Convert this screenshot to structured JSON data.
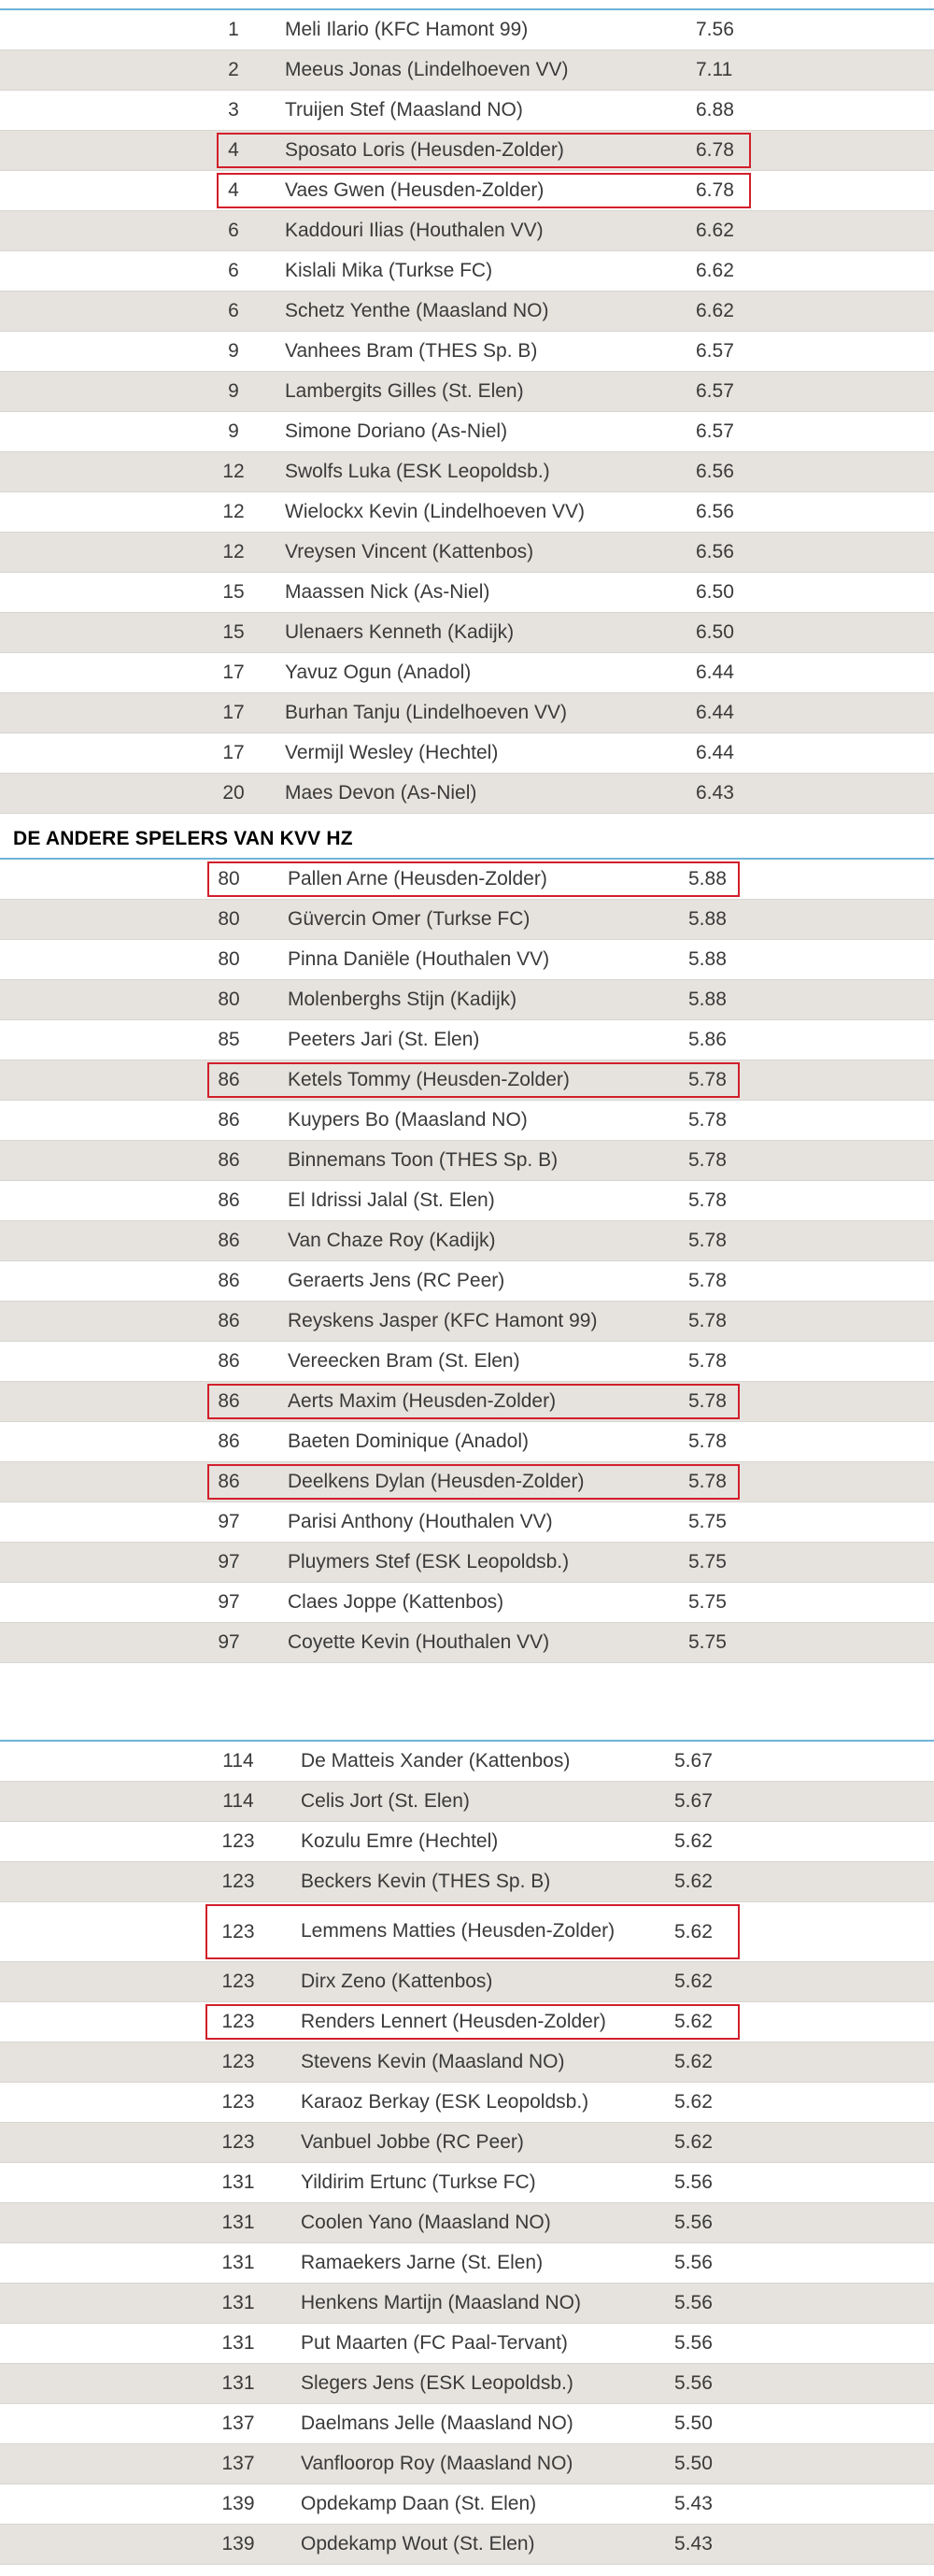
{
  "section_title": "DE  ANDERE SPELERS VAN KVV HZ",
  "block1": [
    {
      "rank": "1",
      "name": "Meli Ilario (KFC Hamont 99)",
      "score": "7.56",
      "shade": false,
      "hl": false
    },
    {
      "rank": "2",
      "name": "Meeus Jonas (Lindelhoeven VV)",
      "score": "7.11",
      "shade": true,
      "hl": false
    },
    {
      "rank": "3",
      "name": "Truijen Stef (Maasland NO)",
      "score": "6.88",
      "shade": false,
      "hl": false
    },
    {
      "rank": "4",
      "name": "Sposato Loris (Heusden-Zolder)",
      "score": "6.78",
      "shade": true,
      "hl": true
    },
    {
      "rank": "4",
      "name": "Vaes Gwen (Heusden-Zolder)",
      "score": "6.78",
      "shade": false,
      "hl": true
    },
    {
      "rank": "6",
      "name": "Kaddouri Ilias (Houthalen VV)",
      "score": "6.62",
      "shade": true,
      "hl": false
    },
    {
      "rank": "6",
      "name": "Kislali Mika (Turkse FC)",
      "score": "6.62",
      "shade": false,
      "hl": false
    },
    {
      "rank": "6",
      "name": "Schetz Yenthe (Maasland NO)",
      "score": "6.62",
      "shade": true,
      "hl": false
    },
    {
      "rank": "9",
      "name": "Vanhees Bram (THES Sp. B)",
      "score": "6.57",
      "shade": false,
      "hl": false
    },
    {
      "rank": "9",
      "name": "Lambergits Gilles (St. Elen)",
      "score": "6.57",
      "shade": true,
      "hl": false
    },
    {
      "rank": "9",
      "name": "Simone Doriano (As-Niel)",
      "score": "6.57",
      "shade": false,
      "hl": false
    },
    {
      "rank": "12",
      "name": "Swolfs Luka (ESK Leopoldsb.)",
      "score": "6.56",
      "shade": true,
      "hl": false
    },
    {
      "rank": "12",
      "name": "Wielockx Kevin (Lindelhoeven VV)",
      "score": "6.56",
      "shade": false,
      "hl": false
    },
    {
      "rank": "12",
      "name": "Vreysen Vincent (Kattenbos)",
      "score": "6.56",
      "shade": true,
      "hl": false
    },
    {
      "rank": "15",
      "name": "Maassen Nick (As-Niel)",
      "score": "6.50",
      "shade": false,
      "hl": false
    },
    {
      "rank": "15",
      "name": "Ulenaers Kenneth (Kadijk)",
      "score": "6.50",
      "shade": true,
      "hl": false
    },
    {
      "rank": "17",
      "name": "Yavuz Ogun (Anadol)",
      "score": "6.44",
      "shade": false,
      "hl": false
    },
    {
      "rank": "17",
      "name": "Burhan Tanju (Lindelhoeven VV)",
      "score": "6.44",
      "shade": true,
      "hl": false
    },
    {
      "rank": "17",
      "name": "Vermijl Wesley (Hechtel)",
      "score": "6.44",
      "shade": false,
      "hl": false
    },
    {
      "rank": "20",
      "name": "Maes Devon (As-Niel)",
      "score": "6.43",
      "shade": true,
      "hl": false
    }
  ],
  "block2": [
    {
      "rank": "80",
      "name": "Pallen Arne (Heusden-Zolder)",
      "score": "5.88",
      "shade": false,
      "hl": true
    },
    {
      "rank": "80",
      "name": "Güvercin Omer (Turkse FC)",
      "score": "5.88",
      "shade": true,
      "hl": false
    },
    {
      "rank": "80",
      "name": "Pinna Daniële (Houthalen VV)",
      "score": "5.88",
      "shade": false,
      "hl": false
    },
    {
      "rank": "80",
      "name": "Molenberghs Stijn (Kadijk)",
      "score": "5.88",
      "shade": true,
      "hl": false
    },
    {
      "rank": "85",
      "name": "Peeters Jari (St. Elen)",
      "score": "5.86",
      "shade": false,
      "hl": false
    },
    {
      "rank": "86",
      "name": "Ketels Tommy (Heusden-Zolder)",
      "score": "5.78",
      "shade": true,
      "hl": true
    },
    {
      "rank": "86",
      "name": "Kuypers Bo (Maasland NO)",
      "score": "5.78",
      "shade": false,
      "hl": false
    },
    {
      "rank": "86",
      "name": "Binnemans Toon (THES Sp. B)",
      "score": "5.78",
      "shade": true,
      "hl": false
    },
    {
      "rank": "86",
      "name": "El Idrissi Jalal (St. Elen)",
      "score": "5.78",
      "shade": false,
      "hl": false
    },
    {
      "rank": "86",
      "name": "Van Chaze Roy (Kadijk)",
      "score": "5.78",
      "shade": true,
      "hl": false
    },
    {
      "rank": "86",
      "name": "Geraerts Jens (RC Peer)",
      "score": "5.78",
      "shade": false,
      "hl": false
    },
    {
      "rank": "86",
      "name": "Reyskens Jasper (KFC Hamont 99)",
      "score": "5.78",
      "shade": true,
      "hl": false
    },
    {
      "rank": "86",
      "name": "Vereecken Bram (St. Elen)",
      "score": "5.78",
      "shade": false,
      "hl": false
    },
    {
      "rank": "86",
      "name": "Aerts Maxim (Heusden-Zolder)",
      "score": "5.78",
      "shade": true,
      "hl": true
    },
    {
      "rank": "86",
      "name": "Baeten Dominique (Anadol)",
      "score": "5.78",
      "shade": false,
      "hl": false
    },
    {
      "rank": "86",
      "name": "Deelkens Dylan (Heusden-Zolder)",
      "score": "5.78",
      "shade": true,
      "hl": true
    },
    {
      "rank": "97",
      "name": "Parisi Anthony (Houthalen VV)",
      "score": "5.75",
      "shade": false,
      "hl": false
    },
    {
      "rank": "97",
      "name": "Pluymers Stef (ESK Leopoldsb.)",
      "score": "5.75",
      "shade": true,
      "hl": false
    },
    {
      "rank": "97",
      "name": "Claes Joppe (Kattenbos)",
      "score": "5.75",
      "shade": false,
      "hl": false
    },
    {
      "rank": "97",
      "name": "Coyette Kevin (Houthalen VV)",
      "score": "5.75",
      "shade": true,
      "hl": false
    }
  ],
  "block3": [
    {
      "rank": "114",
      "name": "De Matteis Xander (Kattenbos)",
      "score": "5.67",
      "shade": false,
      "hl": false,
      "tall": false
    },
    {
      "rank": "114",
      "name": "Celis Jort (St. Elen)",
      "score": "5.67",
      "shade": true,
      "hl": false,
      "tall": false
    },
    {
      "rank": "123",
      "name": "Kozulu Emre (Hechtel)",
      "score": "5.62",
      "shade": false,
      "hl": false,
      "tall": false
    },
    {
      "rank": "123",
      "name": "Beckers Kevin (THES Sp. B)",
      "score": "5.62",
      "shade": true,
      "hl": false,
      "tall": false
    },
    {
      "rank": "123",
      "name": "Lemmens Matties (Heusden-Zolder)",
      "score": "5.62",
      "shade": false,
      "hl": true,
      "tall": true
    },
    {
      "rank": "123",
      "name": "Dirx Zeno (Kattenbos)",
      "score": "5.62",
      "shade": true,
      "hl": false,
      "tall": false
    },
    {
      "rank": "123",
      "name": "Renders Lennert (Heusden-Zolder)",
      "score": "5.62",
      "shade": false,
      "hl": true,
      "tall": false
    },
    {
      "rank": "123",
      "name": "Stevens Kevin (Maasland NO)",
      "score": "5.62",
      "shade": true,
      "hl": false,
      "tall": false
    },
    {
      "rank": "123",
      "name": "Karaoz Berkay (ESK Leopoldsb.)",
      "score": "5.62",
      "shade": false,
      "hl": false,
      "tall": false
    },
    {
      "rank": "123",
      "name": "Vanbuel Jobbe (RC Peer)",
      "score": "5.62",
      "shade": true,
      "hl": false,
      "tall": false
    },
    {
      "rank": "131",
      "name": "Yildirim Ertunc (Turkse FC)",
      "score": "5.56",
      "shade": false,
      "hl": false,
      "tall": false
    },
    {
      "rank": "131",
      "name": "Coolen Yano (Maasland NO)",
      "score": "5.56",
      "shade": true,
      "hl": false,
      "tall": false
    },
    {
      "rank": "131",
      "name": "Ramaekers Jarne (St. Elen)",
      "score": "5.56",
      "shade": false,
      "hl": false,
      "tall": false
    },
    {
      "rank": "131",
      "name": "Henkens Martijn (Maasland NO)",
      "score": "5.56",
      "shade": true,
      "hl": false,
      "tall": false
    },
    {
      "rank": "131",
      "name": "Put Maarten (FC Paal-Tervant)",
      "score": "5.56",
      "shade": false,
      "hl": false,
      "tall": false
    },
    {
      "rank": "131",
      "name": "Slegers Jens (ESK Leopoldsb.)",
      "score": "5.56",
      "shade": true,
      "hl": false,
      "tall": false
    },
    {
      "rank": "137",
      "name": "Daelmans Jelle (Maasland NO)",
      "score": "5.50",
      "shade": false,
      "hl": false,
      "tall": false
    },
    {
      "rank": "137",
      "name": "Vanfloorop Roy (Maasland NO)",
      "score": "5.50",
      "shade": true,
      "hl": false,
      "tall": false
    },
    {
      "rank": "139",
      "name": "Opdekamp Daan (St. Elen)",
      "score": "5.43",
      "shade": false,
      "hl": false,
      "tall": false
    },
    {
      "rank": "139",
      "name": "Opdekamp Wout (St. Elen)",
      "score": "5.43",
      "shade": true,
      "hl": false,
      "tall": false
    }
  ]
}
